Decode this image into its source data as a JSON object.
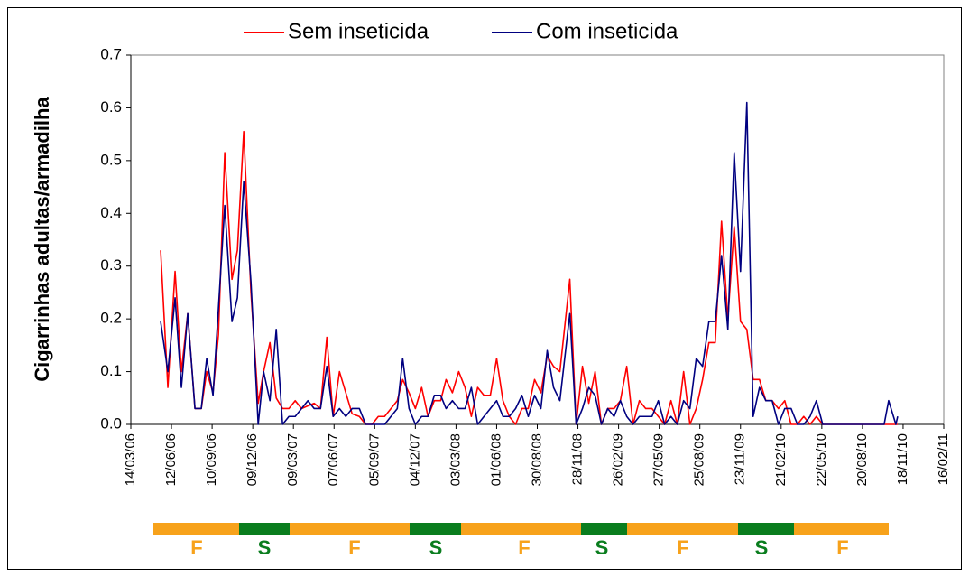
{
  "chart_data": {
    "type": "line",
    "y_label": "Cigarrinhas adultas/armadilha",
    "x": [
      "2006-05-19",
      "2006-06-04",
      "2006-06-20",
      "2006-07-04",
      "2006-07-18",
      "2006-08-03",
      "2006-08-17",
      "2006-08-29",
      "2006-09-12",
      "2006-09-24",
      "2006-10-08",
      "2006-10-24",
      "2006-11-05",
      "2006-11-19",
      "2006-12-05",
      "2006-12-21",
      "2007-01-02",
      "2007-01-16",
      "2007-01-30",
      "2007-02-13",
      "2007-02-27",
      "2007-03-13",
      "2007-03-27",
      "2007-04-10",
      "2007-04-24",
      "2007-05-08",
      "2007-05-22",
      "2007-06-05",
      "2007-06-19",
      "2007-07-03",
      "2007-07-17",
      "2007-08-02",
      "2007-08-16",
      "2007-08-30",
      "2007-09-13",
      "2007-09-27",
      "2007-10-11",
      "2007-10-25",
      "2007-11-06",
      "2007-11-20",
      "2007-12-04",
      "2007-12-18",
      "2008-01-01",
      "2008-01-15",
      "2008-01-29",
      "2008-02-10",
      "2008-02-24",
      "2008-03-09",
      "2008-03-23",
      "2008-04-06",
      "2008-04-20",
      "2008-05-04",
      "2008-05-18",
      "2008-06-01",
      "2008-06-15",
      "2008-06-29",
      "2008-07-13",
      "2008-07-27",
      "2008-08-10",
      "2008-08-24",
      "2008-09-07",
      "2008-09-21",
      "2008-10-05",
      "2008-10-19",
      "2008-11-10",
      "2008-11-24",
      "2008-12-08",
      "2008-12-22",
      "2009-01-05",
      "2009-01-19",
      "2009-02-02",
      "2009-02-16",
      "2009-03-02",
      "2009-03-16",
      "2009-03-30",
      "2009-04-13",
      "2009-04-27",
      "2009-05-11",
      "2009-05-25",
      "2009-06-08",
      "2009-06-22",
      "2009-07-06",
      "2009-07-20",
      "2009-08-03",
      "2009-08-17",
      "2009-08-31",
      "2009-09-14",
      "2009-09-28",
      "2009-10-12",
      "2009-10-26",
      "2009-11-09",
      "2009-11-23",
      "2009-12-07",
      "2009-12-21",
      "2010-01-04",
      "2010-01-18",
      "2010-02-01",
      "2010-02-15",
      "2010-03-01",
      "2010-03-15",
      "2010-03-29",
      "2010-04-12",
      "2010-04-26",
      "2010-05-10",
      "2010-05-24",
      "2010-07-19",
      "2010-10-07",
      "2010-10-17",
      "2010-11-02",
      "2010-11-06"
    ],
    "series": [
      {
        "name": "Sem inseticida",
        "color": "#ff0000",
        "values": [
          0.33,
          0.07,
          0.29,
          0.1,
          0.21,
          0.03,
          0.03,
          0.1,
          0.06,
          0.17,
          0.515,
          0.275,
          0.33,
          0.555,
          0.25,
          0.04,
          0.1,
          0.155,
          0.05,
          0.03,
          0.03,
          0.045,
          0.03,
          0.035,
          0.04,
          0.03,
          0.165,
          0.015,
          0.1,
          0.06,
          0.02,
          0.015,
          0,
          0,
          0.015,
          0.015,
          0.03,
          0.045,
          0.085,
          0.06,
          0.03,
          0.07,
          0.015,
          0.045,
          0.045,
          0.085,
          0.06,
          0.1,
          0.07,
          0.015,
          0.07,
          0.055,
          0.055,
          0.125,
          0.045,
          0.015,
          0,
          0.03,
          0.03,
          0.085,
          0.06,
          0.13,
          0.11,
          0.1,
          0.275,
          0,
          0.11,
          0.04,
          0.1,
          0,
          0.03,
          0.03,
          0.045,
          0.11,
          0,
          0.045,
          0.03,
          0.03,
          0.015,
          0,
          0.045,
          0,
          0.1,
          0,
          0.03,
          0.085,
          0.155,
          0.155,
          0.385,
          0.2,
          0.375,
          0.195,
          0.18,
          0.085,
          0.085,
          0.045,
          0.045,
          0.03,
          0.045,
          0,
          0,
          0.015,
          0,
          0.015,
          0,
          0,
          0,
          0,
          0,
          0
        ]
      },
      {
        "name": "Com inseticida",
        "color": "#000080",
        "values": [
          0.195,
          0.1,
          0.24,
          0.07,
          0.21,
          0.03,
          0.03,
          0.125,
          0.055,
          0.22,
          0.415,
          0.195,
          0.24,
          0.46,
          0.27,
          0,
          0.1,
          0.045,
          0.18,
          0,
          0.015,
          0.015,
          0.03,
          0.045,
          0.03,
          0.03,
          0.11,
          0.015,
          0.03,
          0.015,
          0.03,
          0.03,
          0,
          0,
          0,
          0,
          0.015,
          0.03,
          0.125,
          0.03,
          0,
          0.015,
          0.015,
          0.055,
          0.055,
          0.03,
          0.045,
          0.03,
          0.03,
          0.07,
          0,
          0.015,
          0.03,
          0.045,
          0.015,
          0.015,
          0.03,
          0.055,
          0.015,
          0.055,
          0.03,
          0.14,
          0.07,
          0.045,
          0.21,
          0,
          0.03,
          0.07,
          0.055,
          0,
          0.03,
          0.015,
          0.045,
          0.015,
          0,
          0.015,
          0.015,
          0.015,
          0.045,
          0,
          0.015,
          0,
          0.045,
          0.03,
          0.125,
          0.11,
          0.195,
          0.195,
          0.32,
          0.18,
          0.515,
          0.29,
          0.61,
          0.015,
          0.07,
          0.045,
          0.045,
          0,
          0.03,
          0.03,
          0,
          0,
          0.015,
          0.045,
          0,
          0,
          0,
          0.045,
          0,
          0.015
        ]
      }
    ],
    "xlim": [
      "2006-03-14",
      "2011-02-16"
    ],
    "xticks": [
      {
        "value": "2006-03-14",
        "label": "14/03/06"
      },
      {
        "value": "2006-06-12",
        "label": "12/06/06"
      },
      {
        "value": "2006-09-10",
        "label": "10/09/06"
      },
      {
        "value": "2006-12-09",
        "label": "09/12/06"
      },
      {
        "value": "2007-03-09",
        "label": "09/03/07"
      },
      {
        "value": "2007-06-07",
        "label": "07/06/07"
      },
      {
        "value": "2007-09-05",
        "label": "05/09/07"
      },
      {
        "value": "2007-12-04",
        "label": "04/12/07"
      },
      {
        "value": "2008-03-03",
        "label": "03/03/08"
      },
      {
        "value": "2008-06-01",
        "label": "01/06/08"
      },
      {
        "value": "2008-08-30",
        "label": "30/08/08"
      },
      {
        "value": "2008-11-28",
        "label": "28/11/08"
      },
      {
        "value": "2009-02-26",
        "label": "26/02/09"
      },
      {
        "value": "2009-05-27",
        "label": "27/05/09"
      },
      {
        "value": "2009-08-25",
        "label": "25/08/09"
      },
      {
        "value": "2009-11-23",
        "label": "23/11/09"
      },
      {
        "value": "2010-02-21",
        "label": "21/02/10"
      },
      {
        "value": "2010-05-22",
        "label": "22/05/10"
      },
      {
        "value": "2010-08-20",
        "label": "20/08/10"
      },
      {
        "value": "2010-11-18",
        "label": "18/11/10"
      },
      {
        "value": "2011-02-16",
        "label": "16/02/11"
      }
    ],
    "ylim": [
      0,
      0.7
    ],
    "yticks": [
      {
        "value": 0,
        "label": "0.0"
      },
      0.1,
      0.2,
      0.3,
      0.4,
      0.5,
      0.6,
      0.7
    ],
    "legend": "top",
    "season_bar": [
      "F",
      "S",
      "F",
      "S",
      "F",
      "S",
      "F",
      "S",
      "F"
    ]
  }
}
